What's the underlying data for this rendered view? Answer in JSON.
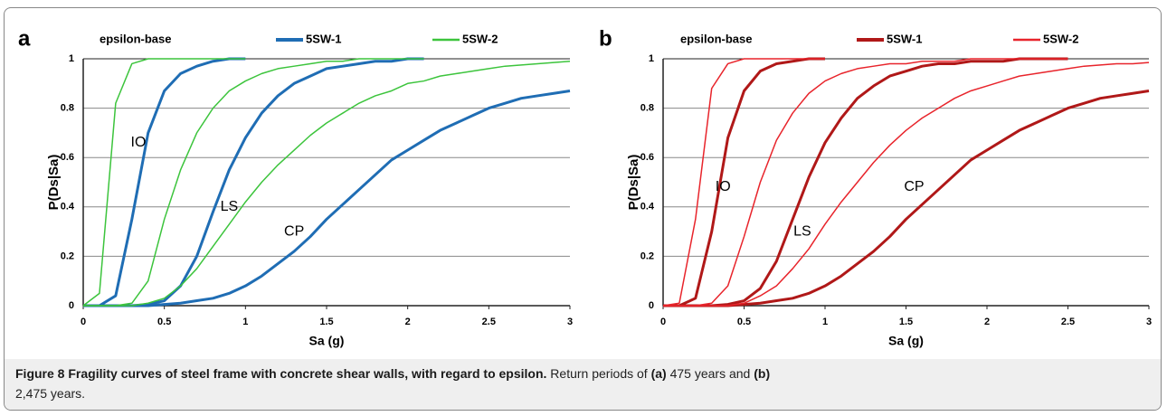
{
  "chart_data": [
    {
      "type": "line",
      "panel": "a",
      "legend_title": "epsilon-base",
      "xlabel": "Sa (g)",
      "ylabel": "P(Ds|Sa)",
      "xlim": [
        0,
        3
      ],
      "ylim": [
        0,
        1
      ],
      "xticks": [
        0,
        0.5,
        1,
        1.5,
        2,
        2.5,
        3
      ],
      "yticks": [
        0,
        0.2,
        0.4,
        0.6,
        0.8,
        1
      ],
      "grid": true,
      "x": [
        0,
        0.1,
        0.2,
        0.3,
        0.4,
        0.5,
        0.6,
        0.7,
        0.8,
        0.9,
        1,
        1.1,
        1.2,
        1.3,
        1.4,
        1.5,
        1.6,
        1.7,
        1.8,
        1.9,
        2,
        2.1,
        2.2,
        2.3,
        2.4,
        2.5,
        2.6,
        2.7,
        2.8,
        2.9,
        3
      ],
      "series": [
        {
          "name": "5SW-1",
          "color": "#1f6db4",
          "curves": [
            {
              "name": "IO",
              "values": [
                0,
                0,
                0.04,
                0.35,
                0.7,
                0.87,
                0.94,
                0.97,
                0.99,
                1,
                1,
                null,
                null,
                null,
                null,
                null,
                null,
                null,
                null,
                null,
                null,
                null,
                null,
                null,
                null,
                null,
                null,
                null,
                null,
                null,
                null
              ]
            },
            {
              "name": "LS",
              "values": [
                0,
                0,
                0,
                0,
                0.005,
                0.02,
                0.08,
                0.2,
                0.38,
                0.55,
                0.68,
                0.78,
                0.85,
                0.9,
                0.93,
                0.96,
                0.97,
                0.98,
                0.99,
                0.99,
                1,
                1,
                null,
                null,
                null,
                null,
                null,
                null,
                null,
                null,
                null
              ]
            },
            {
              "name": "CP",
              "values": [
                0,
                0,
                0,
                0,
                0,
                0.005,
                0.01,
                0.02,
                0.03,
                0.05,
                0.08,
                0.12,
                0.17,
                0.22,
                0.28,
                0.35,
                0.41,
                0.47,
                0.53,
                0.59,
                0.63,
                0.67,
                0.71,
                0.74,
                0.77,
                0.8,
                0.82,
                0.84,
                0.85,
                0.86,
                0.87
              ]
            }
          ]
        },
        {
          "name": "5SW-2",
          "color": "#3cc43c",
          "curves": [
            {
              "values": [
                0,
                0.05,
                0.82,
                0.98,
                1,
                1,
                1,
                1,
                1,
                1,
                1,
                null,
                null,
                null,
                null,
                null,
                null,
                null,
                null,
                null,
                null,
                null,
                null,
                null,
                null,
                null,
                null,
                null,
                null,
                null,
                null
              ]
            },
            {
              "values": [
                0,
                0,
                0,
                0.01,
                0.1,
                0.35,
                0.55,
                0.7,
                0.8,
                0.87,
                0.91,
                0.94,
                0.96,
                0.97,
                0.98,
                0.99,
                0.99,
                1,
                1,
                1,
                1,
                1,
                null,
                null,
                null,
                null,
                null,
                null,
                null,
                null,
                null
              ]
            },
            {
              "values": [
                0,
                0,
                0,
                0,
                0.01,
                0.03,
                0.08,
                0.15,
                0.24,
                0.33,
                0.42,
                0.5,
                0.57,
                0.63,
                0.69,
                0.74,
                0.78,
                0.82,
                0.85,
                0.87,
                0.9,
                0.91,
                0.93,
                0.94,
                0.95,
                0.96,
                0.97,
                0.975,
                0.98,
                0.985,
                0.99
              ]
            }
          ]
        }
      ]
    },
    {
      "type": "line",
      "panel": "b",
      "legend_title": "epsilon-base",
      "xlabel": "Sa (g)",
      "ylabel": "P(Ds|Sa)",
      "xlim": [
        0,
        3
      ],
      "ylim": [
        0,
        1
      ],
      "xticks": [
        0,
        0.5,
        1,
        1.5,
        2,
        2.5,
        3
      ],
      "yticks": [
        0,
        0.2,
        0.4,
        0.6,
        0.8,
        1
      ],
      "grid": true,
      "x": [
        0,
        0.1,
        0.2,
        0.3,
        0.4,
        0.5,
        0.6,
        0.7,
        0.8,
        0.9,
        1,
        1.1,
        1.2,
        1.3,
        1.4,
        1.5,
        1.6,
        1.7,
        1.8,
        1.9,
        2,
        2.1,
        2.2,
        2.3,
        2.4,
        2.5,
        2.6,
        2.7,
        2.8,
        2.9,
        3
      ],
      "series": [
        {
          "name": "5SW-1",
          "color": "#b01818",
          "curves": [
            {
              "name": "IO",
              "values": [
                0,
                0,
                0.03,
                0.3,
                0.68,
                0.87,
                0.95,
                0.98,
                0.99,
                1,
                1,
                null,
                null,
                null,
                null,
                null,
                null,
                null,
                null,
                null,
                null,
                null,
                null,
                null,
                null,
                null,
                null,
                null,
                null,
                null,
                null
              ]
            },
            {
              "name": "LS",
              "values": [
                0,
                0,
                0,
                0,
                0.005,
                0.02,
                0.07,
                0.18,
                0.35,
                0.52,
                0.66,
                0.76,
                0.84,
                0.89,
                0.93,
                0.95,
                0.97,
                0.98,
                0.98,
                0.99,
                0.99,
                0.99,
                1,
                1,
                1,
                1,
                null,
                null,
                null,
                null,
                null
              ]
            },
            {
              "name": "CP",
              "values": [
                0,
                0,
                0,
                0,
                0,
                0.005,
                0.01,
                0.02,
                0.03,
                0.05,
                0.08,
                0.12,
                0.17,
                0.22,
                0.28,
                0.35,
                0.41,
                0.47,
                0.53,
                0.59,
                0.63,
                0.67,
                0.71,
                0.74,
                0.77,
                0.8,
                0.82,
                0.84,
                0.85,
                0.86,
                0.87
              ]
            }
          ]
        },
        {
          "name": "5SW-2",
          "color": "#e8242b",
          "curves": [
            {
              "values": [
                0,
                0.01,
                0.35,
                0.88,
                0.98,
                1,
                1,
                1,
                1,
                1,
                1,
                null,
                null,
                null,
                null,
                null,
                null,
                null,
                null,
                null,
                null,
                null,
                null,
                null,
                null,
                null,
                null,
                null,
                null,
                null,
                null
              ]
            },
            {
              "values": [
                0,
                0,
                0,
                0.01,
                0.08,
                0.28,
                0.5,
                0.67,
                0.78,
                0.86,
                0.91,
                0.94,
                0.96,
                0.97,
                0.98,
                0.98,
                0.99,
                0.99,
                0.99,
                1,
                1,
                1,
                1,
                1,
                1,
                1,
                null,
                null,
                null,
                null,
                null
              ]
            },
            {
              "values": [
                0,
                0,
                0,
                0,
                0,
                0.01,
                0.04,
                0.08,
                0.15,
                0.23,
                0.33,
                0.42,
                0.5,
                0.58,
                0.65,
                0.71,
                0.76,
                0.8,
                0.84,
                0.87,
                0.89,
                0.91,
                0.93,
                0.94,
                0.95,
                0.96,
                0.97,
                0.975,
                0.98,
                0.98,
                0.985
              ]
            }
          ]
        }
      ]
    }
  ],
  "caption": {
    "label": "Figure 8",
    "title": "Fragility curves of steel frame with concrete shear walls, with regard to epsilon.",
    "text_1": "Return periods of",
    "ref_a": "(a)",
    "text_2": "475 years and",
    "ref_b": "(b)",
    "text_3": "2,475 years."
  }
}
